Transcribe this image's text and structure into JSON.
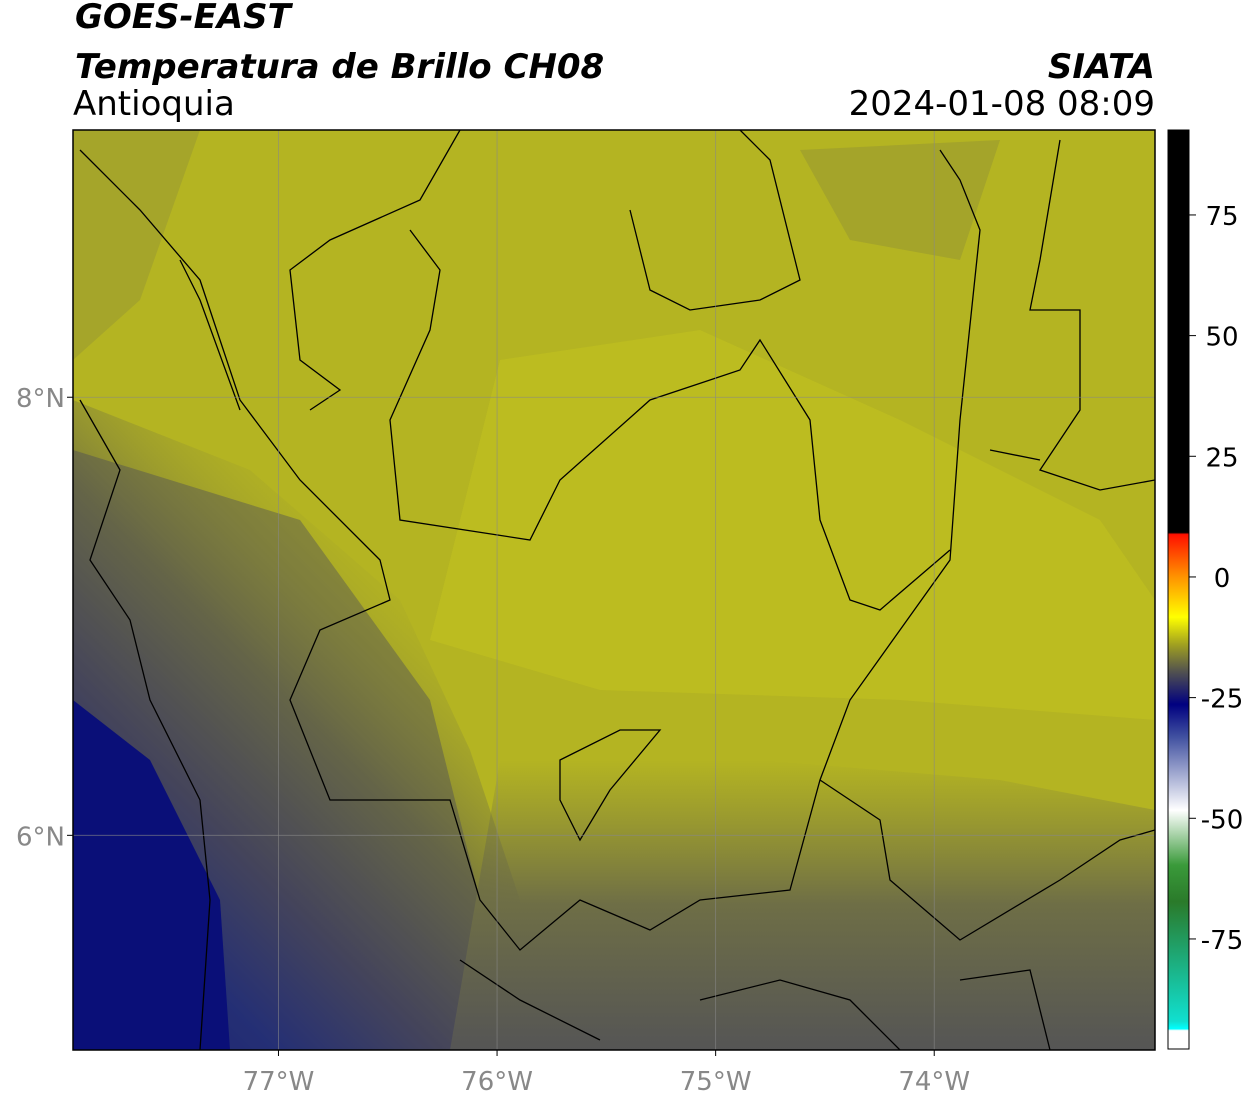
{
  "header": {
    "title": "GOES-EAST",
    "subtitle": "Temperatura de Brillo CH08",
    "region": "Antioquia",
    "source": "SIATA",
    "datetime": "2024-01-08 08:09"
  },
  "map": {
    "xlim": [
      -77.94,
      -72.99
    ],
    "ylim": [
      5.02,
      9.22
    ],
    "xticks": [
      {
        "value": -77,
        "label": "77°W"
      },
      {
        "value": -76,
        "label": "76°W"
      },
      {
        "value": -75,
        "label": "75°W"
      },
      {
        "value": -74,
        "label": "74°W"
      }
    ],
    "yticks": [
      {
        "value": 6,
        "label": "6°N"
      },
      {
        "value": 8,
        "label": "8°N"
      }
    ],
    "grid": true
  },
  "colorbar": {
    "clim": [
      -97.8,
      92.6
    ],
    "ticks": [
      75,
      50,
      25,
      0,
      -25,
      -50,
      -75
    ]
  }
}
